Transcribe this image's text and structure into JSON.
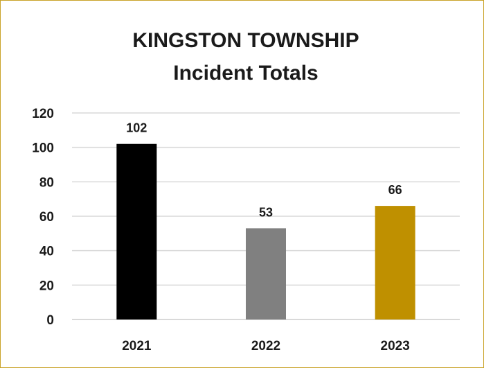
{
  "chart_data": {
    "type": "bar",
    "title": "KINGSTON TOWNSHIP",
    "subtitle": "Incident Totals",
    "categories": [
      "2021",
      "2022",
      "2023"
    ],
    "values": [
      102,
      53,
      66
    ],
    "data_labels": [
      "102",
      "53",
      "66"
    ],
    "bar_colors": [
      "#000000",
      "#808080",
      "#bf9000"
    ],
    "ylim": [
      0,
      120
    ],
    "yticks": [
      0,
      20,
      40,
      60,
      80,
      100,
      120
    ],
    "grid": true,
    "legend": "none",
    "xlabel": "",
    "ylabel": ""
  },
  "colors": {
    "border": "#c9a227",
    "gridline": "#d9d9d9"
  }
}
